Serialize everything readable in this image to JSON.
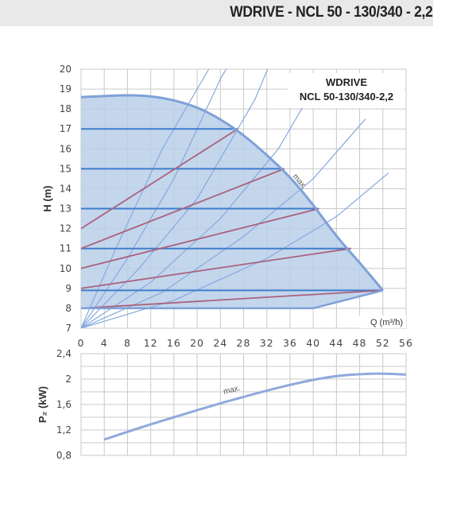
{
  "header": {
    "title": "WDRIVE - NCL 50 - 130/340 - 2,2"
  },
  "chart_data": [
    {
      "type": "line",
      "model_label_line1": "WDRIVE",
      "model_label_line2": "NCL 50-130/340-2,2",
      "ylabel": "H (m)",
      "xlabel": "Q (m³/h)",
      "max_label": "max.",
      "xlim": [
        0,
        56
      ],
      "ylim": [
        7,
        20
      ],
      "x_ticks": [
        "0",
        "4",
        "8",
        "12",
        "16",
        "20",
        "24",
        "28",
        "32",
        "36",
        "40",
        "44",
        "48",
        "52",
        "56"
      ],
      "y_ticks": [
        "7",
        "8",
        "9",
        "10",
        "11",
        "12",
        "13",
        "14",
        "15",
        "16",
        "17",
        "18",
        "19",
        "20"
      ],
      "grid": true,
      "max_curve": [
        [
          0,
          18.6
        ],
        [
          4,
          18.65
        ],
        [
          8,
          18.7
        ],
        [
          12,
          18.65
        ],
        [
          16,
          18.45
        ],
        [
          20,
          18.1
        ],
        [
          24,
          17.5
        ],
        [
          28,
          16.7
        ],
        [
          32,
          15.7
        ],
        [
          36,
          14.6
        ],
        [
          40,
          13.2
        ],
        [
          44,
          11.6
        ],
        [
          48,
          10.3
        ],
        [
          52,
          8.9
        ]
      ],
      "min_curve": [
        [
          0,
          8
        ],
        [
          40,
          8
        ],
        [
          52,
          8.9
        ]
      ],
      "constant_pressure_lines": [
        {
          "h": 17,
          "x_end": 27
        },
        {
          "h": 15,
          "x_end": 35
        },
        {
          "h": 13,
          "x_end": 41
        },
        {
          "h": 11,
          "x_end": 46.5
        },
        {
          "h": 8.9,
          "x_end": 52
        }
      ],
      "proportional_pressure_lines": [
        {
          "from": [
            0,
            12
          ],
          "to": [
            27,
            17
          ]
        },
        {
          "from": [
            0,
            11
          ],
          "to": [
            35,
            15
          ]
        },
        {
          "from": [
            0,
            10
          ],
          "to": [
            41,
            13
          ]
        },
        {
          "from": [
            0,
            9
          ],
          "to": [
            46.5,
            11
          ]
        },
        {
          "from": [
            0,
            8
          ],
          "to": [
            52,
            8.9
          ]
        }
      ],
      "system_curves": [
        {
          "points": [
            [
              0,
              7
            ],
            [
              6,
              11
            ],
            [
              14,
              16
            ],
            [
              22,
              20
            ],
            [
              27,
              22
            ]
          ]
        },
        {
          "points": [
            [
              0,
              7
            ],
            [
              8,
              10.5
            ],
            [
              16,
              14.5
            ],
            [
              24,
              19.5
            ],
            [
              29,
              22
            ]
          ]
        },
        {
          "points": [
            [
              0,
              7
            ],
            [
              10,
              10
            ],
            [
              20,
              13.5
            ],
            [
              30,
              18.5
            ],
            [
              35,
              22
            ]
          ]
        },
        {
          "points": [
            [
              0,
              7
            ],
            [
              12,
              9.3
            ],
            [
              24,
              12.5
            ],
            [
              34,
              16
            ],
            [
              41,
              19.5
            ]
          ]
        },
        {
          "points": [
            [
              0,
              7
            ],
            [
              14,
              8.8
            ],
            [
              28,
              11.6
            ],
            [
              40,
              14.5
            ],
            [
              49,
              17.5
            ]
          ]
        },
        {
          "points": [
            [
              0,
              7
            ],
            [
              16,
              8.4
            ],
            [
              32,
              10.5
            ],
            [
              44,
              12.6
            ],
            [
              53,
              14.8
            ]
          ]
        }
      ]
    },
    {
      "type": "line",
      "ylabel": "P₂ (kW)",
      "max_label": "max.",
      "xlim": [
        0,
        56
      ],
      "ylim": [
        0.8,
        2.4
      ],
      "y_ticks": [
        "0,8",
        "1,2",
        "1,6",
        "2",
        "2,4"
      ],
      "y_tick_values": [
        0.8,
        1.2,
        1.6,
        2.0,
        2.4
      ],
      "grid": true,
      "series": [
        {
          "values": [
            [
              4,
              1.05
            ],
            [
              8,
              1.17
            ],
            [
              12,
              1.29
            ],
            [
              16,
              1.4
            ],
            [
              20,
              1.51
            ],
            [
              24,
              1.62
            ],
            [
              28,
              1.72
            ],
            [
              32,
              1.82
            ],
            [
              36,
              1.91
            ],
            [
              40,
              1.99
            ],
            [
              44,
              2.05
            ],
            [
              48,
              2.08
            ],
            [
              52,
              2.09
            ],
            [
              56,
              2.07
            ]
          ]
        }
      ]
    }
  ],
  "colors": {
    "header_band": "#e9e9e9",
    "fill": "#b9cfe9",
    "max_curve": "#7fa1d8",
    "constant_pressure": "#3f7dcb",
    "proportional_pressure": "#a9627f",
    "system_curve": "#86a9de",
    "power_curve": "#8fa9dd",
    "grid": "#c9c9c9"
  }
}
